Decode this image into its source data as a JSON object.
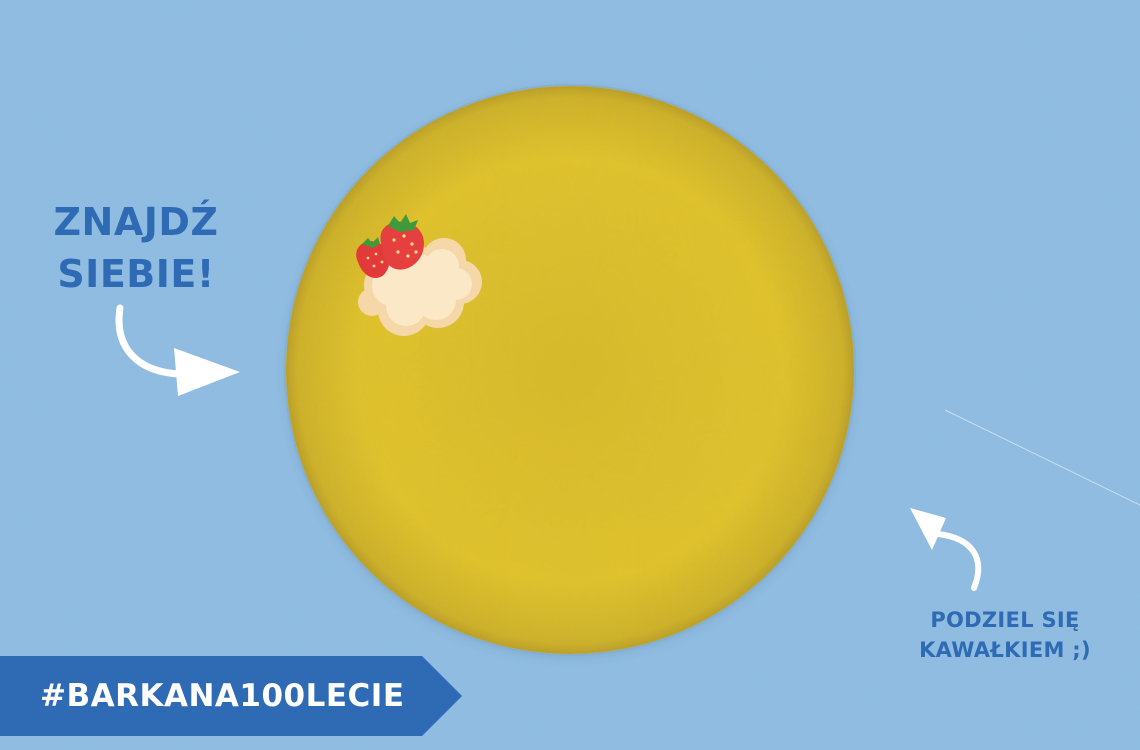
{
  "colors": {
    "background": "#8dbbe0",
    "plate": "#e2c52a",
    "text_blue": "#2f6bb4",
    "banner": "#2f6bb4",
    "arrow": "#ffffff"
  },
  "find_label": {
    "line1": "ZNAJDŹ",
    "line2": "SIEBIE!"
  },
  "share_label": {
    "line1": "PODZIEL SIĘ",
    "line2": "KAWAŁKIEM ;)"
  },
  "banner": {
    "hashtag": "#BARKANA100LECIE"
  },
  "icons": {
    "left_arrow": "curved-arrow-right-icon",
    "right_arrow": "curved-arrow-up-left-icon",
    "cake": "strawberry-cream-icon"
  }
}
